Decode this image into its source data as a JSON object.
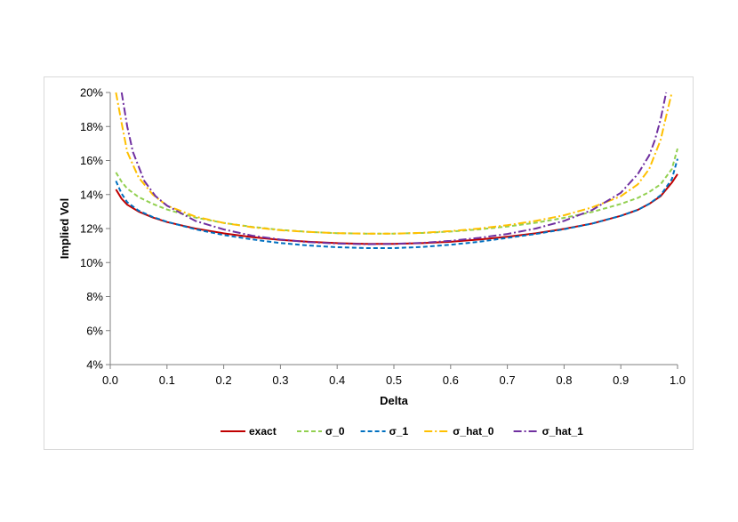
{
  "chart_data": {
    "type": "line",
    "title": "",
    "xlabel": "Delta",
    "ylabel": "Implied Vol",
    "xlim": [
      0,
      1
    ],
    "ylim": [
      0.04,
      0.2
    ],
    "xticks": [
      0.0,
      0.1,
      0.2,
      0.3,
      0.4,
      0.5,
      0.6,
      0.7,
      0.8,
      0.9,
      1.0
    ],
    "xtick_labels": [
      "0.0",
      "0.1",
      "0.2",
      "0.3",
      "0.4",
      "0.5",
      "0.6",
      "0.7",
      "0.8",
      "0.9",
      "1.0"
    ],
    "yticks": [
      0.04,
      0.06,
      0.08,
      0.1,
      0.12,
      0.14,
      0.16,
      0.18,
      0.2
    ],
    "ytick_labels": [
      "4%",
      "6%",
      "8%",
      "10%",
      "12%",
      "14%",
      "16%",
      "18%",
      "20%"
    ],
    "grid": false,
    "legend_position": "bottom",
    "series": [
      {
        "name": "exact",
        "color": "#c00000",
        "dash": "solid",
        "x": [
          0.01,
          0.02,
          0.03,
          0.05,
          0.075,
          0.1,
          0.15,
          0.2,
          0.25,
          0.3,
          0.35,
          0.4,
          0.45,
          0.5,
          0.55,
          0.6,
          0.65,
          0.7,
          0.75,
          0.8,
          0.85,
          0.9,
          0.93,
          0.95,
          0.97,
          0.99,
          1.0
        ],
        "y": [
          0.143,
          0.1375,
          0.134,
          0.13,
          0.1265,
          0.1238,
          0.12,
          0.1172,
          0.115,
          0.1133,
          0.1122,
          0.1114,
          0.111,
          0.111,
          0.1114,
          0.1122,
          0.1135,
          0.1152,
          0.1172,
          0.1198,
          0.123,
          0.1275,
          0.131,
          0.1345,
          0.139,
          0.147,
          0.152
        ]
      },
      {
        "name": "σ_0",
        "color": "#92d050",
        "dash": "dashed",
        "x": [
          0.01,
          0.02,
          0.03,
          0.05,
          0.075,
          0.1,
          0.15,
          0.2,
          0.25,
          0.3,
          0.35,
          0.4,
          0.45,
          0.5,
          0.55,
          0.6,
          0.65,
          0.7,
          0.75,
          0.8,
          0.85,
          0.9,
          0.93,
          0.95,
          0.97,
          0.99,
          1.0
        ],
        "y": [
          0.153,
          0.1475,
          0.1435,
          0.1385,
          0.1345,
          0.1312,
          0.1265,
          0.1233,
          0.121,
          0.1192,
          0.118,
          0.1173,
          0.117,
          0.117,
          0.1174,
          0.1182,
          0.1195,
          0.1212,
          0.1234,
          0.1263,
          0.1298,
          0.1345,
          0.138,
          0.1415,
          0.146,
          0.155,
          0.167
        ]
      },
      {
        "name": "σ_1",
        "color": "#0070c0",
        "dash": "dashed",
        "x": [
          0.01,
          0.02,
          0.03,
          0.05,
          0.075,
          0.1,
          0.15,
          0.2,
          0.25,
          0.3,
          0.35,
          0.4,
          0.45,
          0.5,
          0.55,
          0.6,
          0.65,
          0.7,
          0.75,
          0.8,
          0.85,
          0.9,
          0.93,
          0.95,
          0.97,
          0.99,
          1.0
        ],
        "y": [
          0.148,
          0.1405,
          0.1355,
          0.1305,
          0.1268,
          0.124,
          0.1196,
          0.1162,
          0.1136,
          0.1115,
          0.11,
          0.109,
          0.1085,
          0.1085,
          0.1092,
          0.1105,
          0.1122,
          0.1145,
          0.1168,
          0.1196,
          0.123,
          0.1275,
          0.131,
          0.1345,
          0.1395,
          0.149,
          0.161
        ]
      },
      {
        "name": "σ_hat_0",
        "color": "#ffc000",
        "dash": "dashdot",
        "x": [
          0.01,
          0.02,
          0.03,
          0.05,
          0.075,
          0.1,
          0.15,
          0.2,
          0.25,
          0.3,
          0.35,
          0.4,
          0.45,
          0.5,
          0.55,
          0.6,
          0.65,
          0.7,
          0.75,
          0.8,
          0.85,
          0.9,
          0.93,
          0.95,
          0.97,
          0.98,
          0.99
        ],
        "y": [
          0.2,
          0.182,
          0.165,
          0.15,
          0.14,
          0.1335,
          0.127,
          0.1233,
          0.1208,
          0.119,
          0.118,
          0.1173,
          0.117,
          0.117,
          0.1175,
          0.1185,
          0.12,
          0.122,
          0.1245,
          0.1278,
          0.1325,
          0.139,
          0.146,
          0.155,
          0.172,
          0.186,
          0.2
        ]
      },
      {
        "name": "σ_hat_1",
        "color": "#7030a0",
        "dash": "dashdot",
        "x": [
          0.02,
          0.03,
          0.04,
          0.06,
          0.08,
          0.1,
          0.15,
          0.2,
          0.25,
          0.3,
          0.35,
          0.4,
          0.45,
          0.5,
          0.55,
          0.6,
          0.65,
          0.7,
          0.75,
          0.8,
          0.85,
          0.9,
          0.93,
          0.95,
          0.96,
          0.97,
          0.98
        ],
        "y": [
          0.2,
          0.18,
          0.165,
          0.148,
          0.139,
          0.1335,
          0.1245,
          0.1195,
          0.1158,
          0.1135,
          0.112,
          0.1112,
          0.1108,
          0.111,
          0.1116,
          0.1128,
          0.1145,
          0.1168,
          0.12,
          0.1245,
          0.131,
          0.141,
          0.152,
          0.163,
          0.172,
          0.184,
          0.2
        ]
      }
    ]
  }
}
